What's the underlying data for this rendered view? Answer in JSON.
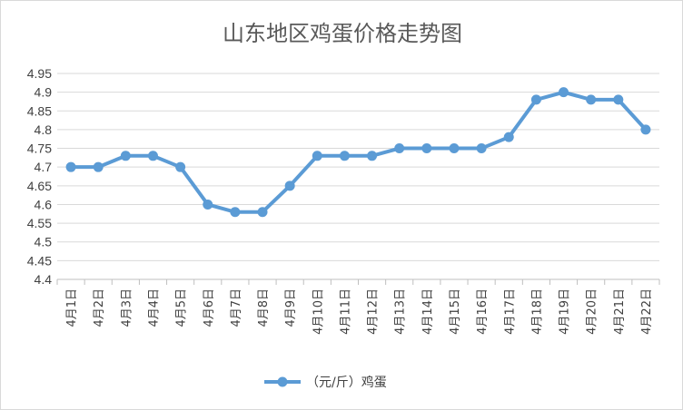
{
  "chart_data": {
    "type": "line",
    "title": "山东地区鸡蛋价格走势图",
    "xlabel": "",
    "ylabel": "",
    "ylim": [
      4.4,
      4.95
    ],
    "ytick_step": 0.05,
    "yticks": [
      "4.95",
      "4.9",
      "4.85",
      "4.8",
      "4.75",
      "4.7",
      "4.65",
      "4.6",
      "4.55",
      "4.5",
      "4.45",
      "4.4"
    ],
    "grid": true,
    "legend_position": "bottom",
    "categories": [
      "4月1日",
      "4月2日",
      "4月3日",
      "4月4日",
      "4月5日",
      "4月6日",
      "4月7日",
      "4月8日",
      "4月9日",
      "4月10日",
      "4月11日",
      "4月12日",
      "4月13日",
      "4月14日",
      "4月15日",
      "4月16日",
      "4月17日",
      "4月18日",
      "4月19日",
      "4月20日",
      "4月21日",
      "4月22日"
    ],
    "series": [
      {
        "name": "（元/斤）鸡蛋",
        "color": "#5b9bd5",
        "values": [
          4.7,
          4.7,
          4.73,
          4.73,
          4.7,
          4.6,
          4.58,
          4.58,
          4.65,
          4.73,
          4.73,
          4.73,
          4.75,
          4.75,
          4.75,
          4.75,
          4.78,
          4.88,
          4.9,
          4.88,
          4.88,
          4.8
        ]
      }
    ]
  }
}
